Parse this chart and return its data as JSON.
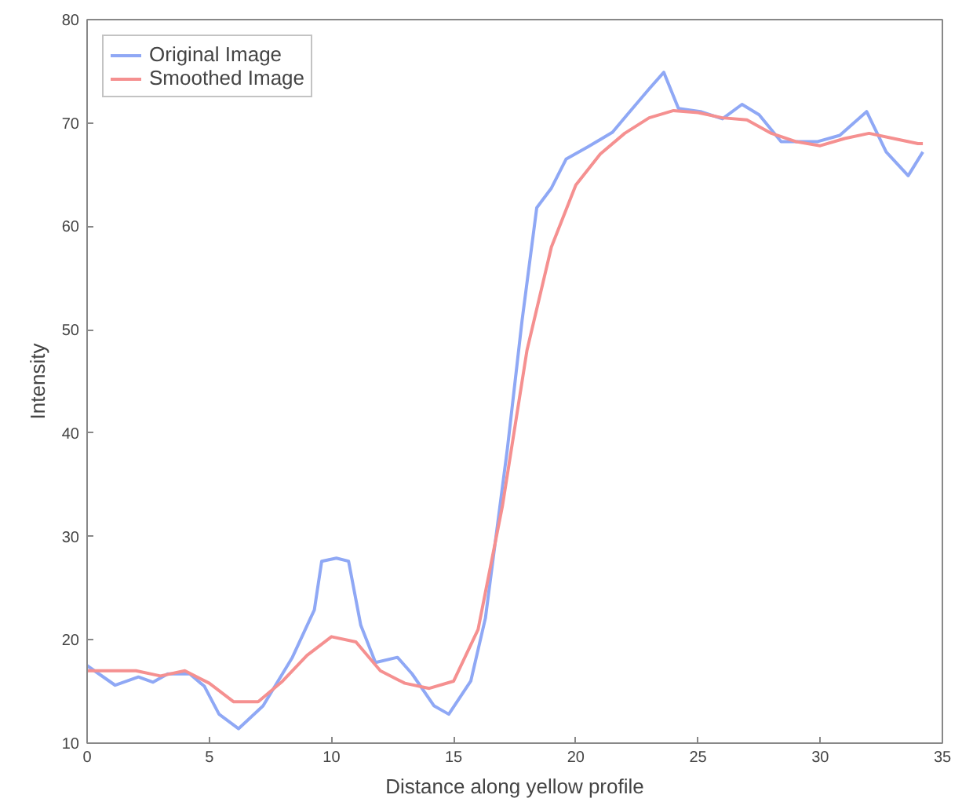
{
  "chart_data": {
    "type": "line",
    "xlabel": "Distance along yellow profile",
    "ylabel": "Intensity",
    "xlim": [
      0,
      35
    ],
    "ylim": [
      10,
      80
    ],
    "xticks": [
      0,
      5,
      10,
      15,
      20,
      25,
      30,
      35
    ],
    "yticks": [
      10,
      20,
      30,
      40,
      50,
      60,
      70,
      80
    ],
    "grid": false,
    "legend": "top left",
    "marker": "none",
    "line_style": "solid",
    "series": [
      {
        "name": "Original Image",
        "color": "#8fa8f5",
        "x": [
          0,
          1.15,
          2.1,
          2.7,
          3.3,
          4.2,
          4.8,
          5.4,
          6.2,
          7.2,
          8.4,
          9.3,
          9.6,
          10.2,
          10.7,
          11.2,
          11.8,
          12.7,
          13.3,
          14.2,
          14.8,
          15.7,
          16.3,
          17.2,
          17.8,
          18.4,
          19,
          19.6,
          20.5,
          21.5,
          22.1,
          23,
          23.6,
          24.2,
          25.1,
          26,
          26.8,
          27.5,
          28.4,
          29.9,
          30.8,
          31.9,
          32.7,
          33.6,
          34.2
        ],
        "values": [
          17.5,
          15.6,
          16.4,
          15.9,
          16.7,
          16.7,
          15.5,
          12.8,
          11.4,
          13.6,
          18.3,
          22.9,
          27.6,
          27.9,
          27.6,
          21.4,
          17.8,
          18.3,
          16.7,
          13.6,
          12.8,
          16,
          22.1,
          38.5,
          50.9,
          61.8,
          63.7,
          66.5,
          67.7,
          69.1,
          70.8,
          73.3,
          74.9,
          71.4,
          71.1,
          70.4,
          71.8,
          70.8,
          68.2,
          68.2,
          68.8,
          71.1,
          67.2,
          64.9,
          67.2
        ]
      },
      {
        "name": "Smoothed Image",
        "color": "#f59090",
        "x": [
          0,
          2,
          3,
          4,
          5,
          6,
          7,
          8,
          9,
          10,
          11,
          12,
          13,
          14,
          15,
          16,
          17,
          18,
          19,
          20,
          21,
          22,
          23,
          24,
          25,
          26,
          27,
          28,
          29,
          30,
          31,
          32,
          33,
          34,
          34.2
        ],
        "values": [
          17,
          17,
          16.5,
          17,
          15.8,
          14,
          14,
          16,
          18.5,
          20.3,
          19.8,
          17,
          15.8,
          15.3,
          16,
          21,
          33,
          48,
          58,
          64,
          67,
          69,
          70.5,
          71.2,
          71,
          70.5,
          70.3,
          69,
          68.2,
          67.8,
          68.5,
          69,
          68.5,
          68,
          68
        ]
      }
    ]
  }
}
